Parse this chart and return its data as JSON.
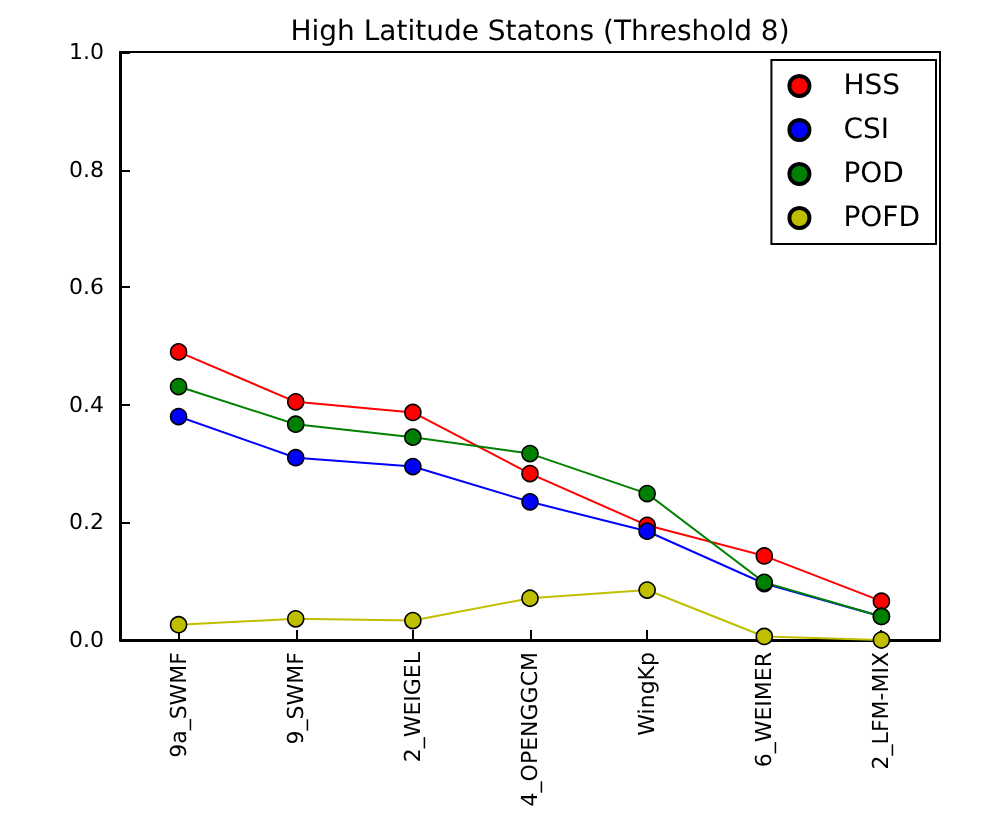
{
  "chart_data": {
    "type": "line",
    "title": "High Latitude Statons (Threshold 8)",
    "categories": [
      "9a_SWMF",
      "9_SWMF",
      "2_WEIGEL",
      "4_OPENGGCM",
      "WingKp",
      "6_WEIMER",
      "2_LFM-MIX"
    ],
    "series": [
      {
        "name": "HSS",
        "color": "#ff0000",
        "values": [
          0.49,
          0.405,
          0.387,
          0.283,
          0.195,
          0.143,
          0.066
        ]
      },
      {
        "name": "CSI",
        "color": "#0000ff",
        "values": [
          0.38,
          0.31,
          0.295,
          0.235,
          0.185,
          0.096,
          0.04
        ]
      },
      {
        "name": "POD",
        "color": "#008000",
        "values": [
          0.431,
          0.367,
          0.345,
          0.317,
          0.249,
          0.098,
          0.04
        ]
      },
      {
        "name": "POFD",
        "color": "#bfbf00",
        "values": [
          0.026,
          0.036,
          0.033,
          0.071,
          0.085,
          0.006,
          0.0
        ]
      }
    ],
    "ylim": [
      0,
      1
    ],
    "yticks": [
      {
        "value": 0,
        "label": "0.0"
      },
      {
        "value": 0.2,
        "label": "0.2"
      },
      {
        "value": 0.4,
        "label": "0.4"
      },
      {
        "value": 0.6,
        "label": "0.6"
      },
      {
        "value": 0.8,
        "label": "0.8"
      },
      {
        "value": 1,
        "label": "1.0"
      }
    ],
    "grid": false,
    "legend": "top right",
    "marker": "circle",
    "line_style": "solid"
  }
}
